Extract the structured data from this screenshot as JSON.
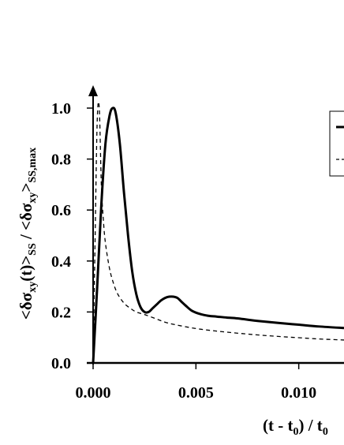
{
  "chart_data": {
    "type": "line",
    "xlim": [
      0,
      0.0122
    ],
    "ylim": [
      0,
      1.0
    ],
    "x_ticks": [
      0.0,
      0.005,
      0.01
    ],
    "x_tick_labels": [
      "0.000",
      "0.005",
      "0.010"
    ],
    "y_ticks": [
      0.0,
      0.2,
      0.4,
      0.6,
      0.8,
      1.0
    ],
    "y_tick_labels": [
      "0.0",
      "0.2",
      "0.4",
      "0.6",
      "0.8",
      "1.0"
    ],
    "xlabel": {
      "main": "(t - t",
      "sub": "0",
      "after": ") / t",
      "sub2": "0"
    },
    "ylabel": "<δσxy(t)>SS / <δσxy>SS,max",
    "grid": false,
    "legend": "top-right",
    "series": [
      {
        "style": "solid",
        "color": "#000000",
        "x": [
          0.0,
          0.0002,
          0.0004,
          0.0006,
          0.0008,
          0.00095,
          0.0011,
          0.0013,
          0.0015,
          0.0017,
          0.0019,
          0.0021,
          0.0023,
          0.0025,
          0.0027,
          0.0029,
          0.0031,
          0.0033,
          0.0035,
          0.0037,
          0.0039,
          0.0041,
          0.0043,
          0.0045,
          0.0048,
          0.0052,
          0.0056,
          0.006,
          0.0065,
          0.007,
          0.0075,
          0.008,
          0.009,
          0.01,
          0.011,
          0.0122
        ],
        "y": [
          0.0,
          0.3,
          0.62,
          0.86,
          0.97,
          1.0,
          0.98,
          0.86,
          0.67,
          0.5,
          0.36,
          0.27,
          0.22,
          0.2,
          0.2,
          0.215,
          0.23,
          0.245,
          0.255,
          0.26,
          0.26,
          0.255,
          0.24,
          0.225,
          0.205,
          0.192,
          0.185,
          0.182,
          0.178,
          0.175,
          0.17,
          0.165,
          0.157,
          0.15,
          0.143,
          0.137
        ]
      },
      {
        "style": "dashed",
        "color": "#000000",
        "x": [
          0.0,
          0.0001,
          0.0002,
          0.0003,
          0.0004,
          0.0005,
          0.0006,
          0.0008,
          0.001,
          0.0012,
          0.0015,
          0.0018,
          0.0021,
          0.0025,
          0.003,
          0.0035,
          0.004,
          0.005,
          0.006,
          0.007,
          0.008,
          0.009,
          0.01,
          0.011,
          0.0122
        ],
        "y": [
          0.0,
          0.5,
          0.95,
          1.0,
          0.7,
          0.56,
          0.47,
          0.37,
          0.31,
          0.27,
          0.235,
          0.215,
          0.2,
          0.19,
          0.175,
          0.16,
          0.15,
          0.135,
          0.125,
          0.117,
          0.11,
          0.104,
          0.099,
          0.094,
          0.09
        ]
      }
    ]
  }
}
